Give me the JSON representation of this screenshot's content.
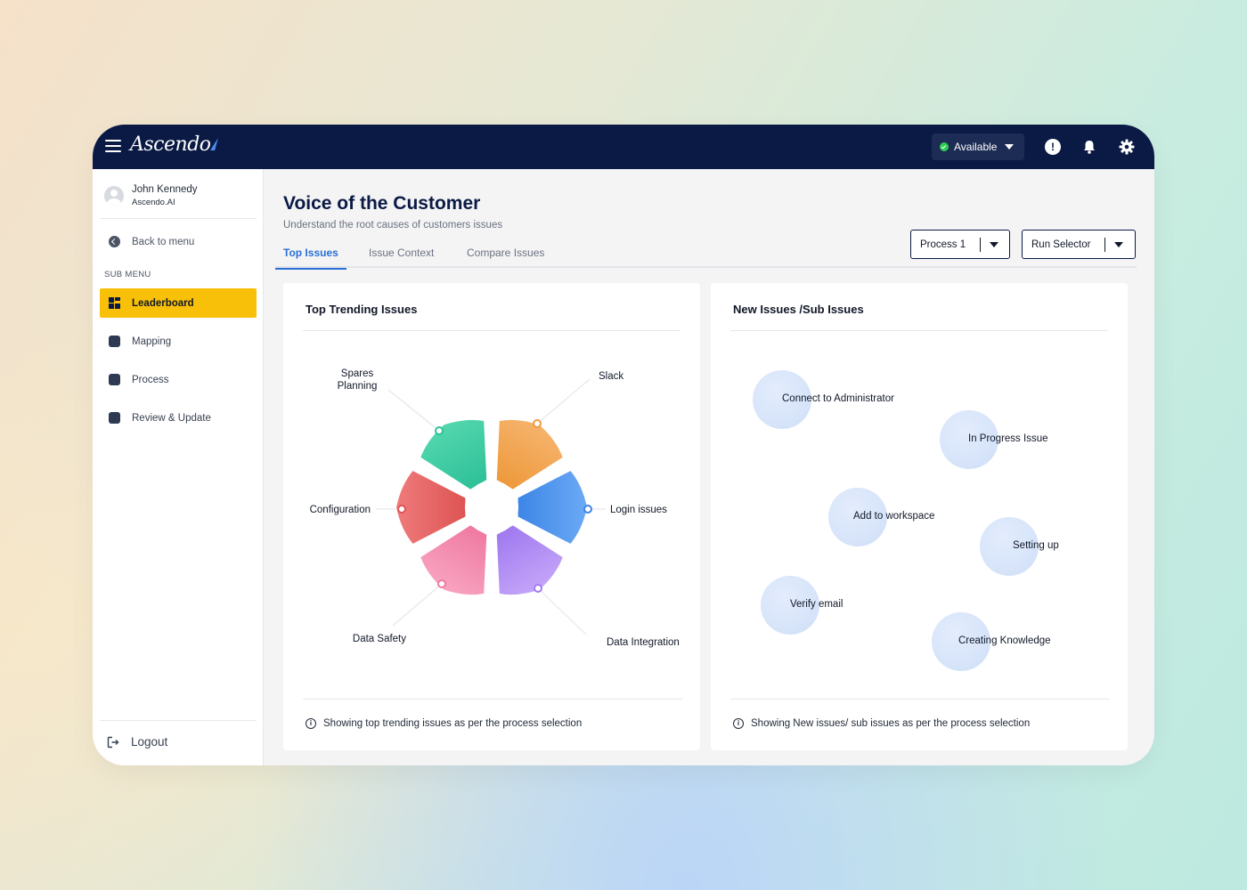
{
  "app": {
    "brand": "Ascendo",
    "status": "Available",
    "colors": {
      "navy": "#0b1a45",
      "accent": "#f8c009",
      "link": "#2a6fd6",
      "online": "#2ecc53"
    }
  },
  "sidebar": {
    "user_name": "John Kennedy",
    "user_org": "Ascendo.AI",
    "back_label": "Back to menu",
    "submenu_label": "SUB MENU",
    "items": [
      {
        "label": "Leaderboard",
        "icon": "grid-icon",
        "active": true
      },
      {
        "label": "Mapping",
        "icon": "mapping-icon",
        "active": false
      },
      {
        "label": "Process",
        "icon": "process-icon",
        "active": false
      },
      {
        "label": "Review & Update",
        "icon": "edit-icon",
        "active": false
      }
    ],
    "logout_label": "Logout"
  },
  "page": {
    "title": "Voice of the Customer",
    "subtitle": "Understand the root causes of customers issues",
    "tabs": [
      "Top Issues",
      "Issue Context",
      "Compare Issues"
    ],
    "process_select": "Process 1",
    "run_select": "Run Selector"
  },
  "trending": {
    "title": "Top Trending Issues",
    "footer": "Showing top trending issues as per the process selection",
    "segments": [
      {
        "label": "Slack",
        "color_a": "#f6b26b",
        "color_b": "#ee9a3c"
      },
      {
        "label": "Login issues",
        "color_a": "#6aa9f5",
        "color_b": "#3d86e6"
      },
      {
        "label": "Data Integration",
        "color_a": "#c3a4f8",
        "color_b": "#a07af0"
      },
      {
        "label": "Data Safety",
        "color_a": "#f8a3bf",
        "color_b": "#ef7aa2"
      },
      {
        "label": "Configuration",
        "color_a": "#ef7a7a",
        "color_b": "#de5454"
      },
      {
        "label": "Spares Planning",
        "color_a": "#52d6ad",
        "color_b": "#2fc199"
      }
    ]
  },
  "new_issues": {
    "title": "New Issues /Sub Issues",
    "footer": "Showing New issues/ sub issues as per the process selection",
    "bubbles": [
      "Connect to Administrator",
      "In Progress Issue",
      "Add to workspace",
      "Setting up",
      "Verify email",
      "Creating Knowledge"
    ]
  }
}
